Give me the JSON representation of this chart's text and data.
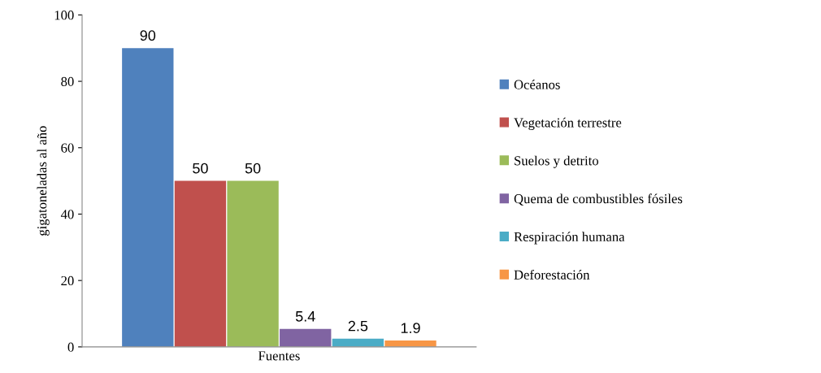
{
  "chart_data": {
    "type": "bar",
    "categories": [
      "Fuentes"
    ],
    "ylabel": "gigatoneladas al año",
    "series": [
      {
        "name": "Océanos",
        "color": "#4f81bd",
        "values": [
          90
        ]
      },
      {
        "name": "Vegetación terrestre",
        "color": "#c0504d",
        "values": [
          50
        ]
      },
      {
        "name": "Suelos y detrito",
        "color": "#9bbb59",
        "values": [
          50
        ]
      },
      {
        "name": "Quema de combustibles fósiles",
        "color": "#8064a2",
        "values": [
          5.4
        ]
      },
      {
        "name": "Respiración humana",
        "color": "#4bacc6",
        "values": [
          2.5
        ]
      },
      {
        "name": "Deforestación",
        "color": "#f79646",
        "values": [
          1.9
        ]
      }
    ],
    "ylim": [
      0,
      100
    ],
    "yticks": [
      0,
      20,
      40,
      60,
      80,
      100
    ],
    "grid": false,
    "legend": "right",
    "data_labels": true
  }
}
